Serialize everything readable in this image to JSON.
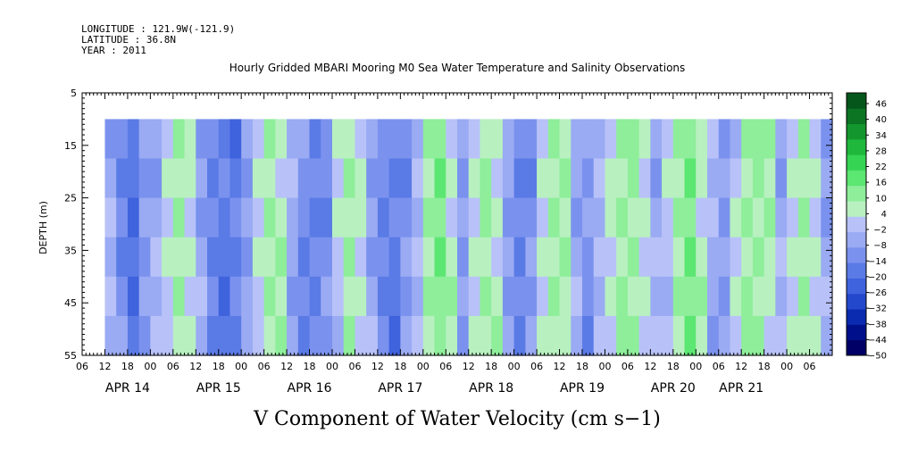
{
  "header": {
    "longitude": "LONGITUDE : 121.9W(-121.9)",
    "latitude": "LATITUDE : 36.8N",
    "year": "YEAR : 2011"
  },
  "chart_data": {
    "type": "heatmap",
    "title": "Hourly Gridded MBARI Mooring M0 Sea Water Temperature and Salinity Observations",
    "xlabel": "V Component of Water Velocity (cm s−1)",
    "ylabel": "DEPTH (m)",
    "y_range": [
      5,
      55
    ],
    "y_inverted": true,
    "y_ticks": [
      5,
      15,
      25,
      35,
      45,
      55
    ],
    "data_depth_range": [
      10,
      55
    ],
    "x_range_hours": [
      0,
      198
    ],
    "data_start_hour": 6,
    "x_hour_labels": [
      "06",
      "12",
      "18",
      "00",
      "06",
      "12",
      "18",
      "00",
      "06",
      "12",
      "18",
      "00",
      "06",
      "12",
      "18",
      "00",
      "06",
      "12",
      "18",
      "00",
      "06",
      "12",
      "18",
      "00",
      "06",
      "12",
      "18",
      "00",
      "06",
      "12",
      "18",
      "00",
      "06"
    ],
    "x_date_labels": [
      {
        "label": "APR 14",
        "hour": 12
      },
      {
        "label": "APR 15",
        "hour": 36
      },
      {
        "label": "APR 16",
        "hour": 60
      },
      {
        "label": "APR 17",
        "hour": 84
      },
      {
        "label": "APR 18",
        "hour": 108
      },
      {
        "label": "APR 19",
        "hour": 132
      },
      {
        "label": "APR 20",
        "hour": 156
      },
      {
        "label": "APR 21",
        "hour": 174
      }
    ],
    "colorbar": {
      "levels": [
        -50,
        -44,
        -38,
        -32,
        -26,
        -20,
        -14,
        -8,
        -2,
        4,
        10,
        16,
        22,
        28,
        34,
        40,
        46
      ],
      "label_values": [
        "46",
        "40",
        "34",
        "28",
        "22",
        "16",
        "10",
        "4",
        "−2",
        "−8",
        "−14",
        "−20",
        "−26",
        "−32",
        "−38",
        "−44",
        "−50"
      ],
      "colors": [
        "#000066",
        "#00108a",
        "#0a2bb0",
        "#2448cc",
        "#3f62dd",
        "#5a7ae6",
        "#7a92ee",
        "#9aaaf3",
        "#b8c2f8",
        "#b8f0c0",
        "#8eee9a",
        "#5ce672",
        "#35d452",
        "#1fb83c",
        "#14962e",
        "#0b7524",
        "#05561a"
      ]
    },
    "bands": [
      {
        "hour": 6,
        "v": -6
      },
      {
        "hour": 9,
        "v": -12
      },
      {
        "hour": 12,
        "v": -18
      },
      {
        "hour": 15,
        "v": -10
      },
      {
        "hour": 18,
        "v": -4
      },
      {
        "hour": 21,
        "v": 3
      },
      {
        "hour": 24,
        "v": 8
      },
      {
        "hour": 27,
        "v": 4
      },
      {
        "hour": 30,
        "v": -6
      },
      {
        "hour": 33,
        "v": -14
      },
      {
        "hour": 36,
        "v": -18
      },
      {
        "hour": 39,
        "v": -16
      },
      {
        "hour": 42,
        "v": -8
      },
      {
        "hour": 45,
        "v": 2
      },
      {
        "hour": 48,
        "v": 10
      },
      {
        "hour": 51,
        "v": 6
      },
      {
        "hour": 54,
        "v": -4
      },
      {
        "hour": 57,
        "v": -12
      },
      {
        "hour": 60,
        "v": -16
      },
      {
        "hour": 63,
        "v": -10
      },
      {
        "hour": 66,
        "v": 2
      },
      {
        "hour": 69,
        "v": 8
      },
      {
        "hour": 72,
        "v": 4
      },
      {
        "hour": 75,
        "v": -6
      },
      {
        "hour": 78,
        "v": -12
      },
      {
        "hour": 81,
        "v": -18
      },
      {
        "hour": 84,
        "v": -10
      },
      {
        "hour": 87,
        "v": 0
      },
      {
        "hour": 90,
        "v": 8
      },
      {
        "hour": 93,
        "v": 12
      },
      {
        "hour": 96,
        "v": 6
      },
      {
        "hour": 99,
        "v": -8
      },
      {
        "hour": 102,
        "v": 2
      },
      {
        "hour": 105,
        "v": 10
      },
      {
        "hour": 108,
        "v": 6
      },
      {
        "hour": 111,
        "v": -6
      },
      {
        "hour": 114,
        "v": -14
      },
      {
        "hour": 117,
        "v": -10
      },
      {
        "hour": 120,
        "v": 4
      },
      {
        "hour": 123,
        "v": 10
      },
      {
        "hour": 126,
        "v": 6
      },
      {
        "hour": 129,
        "v": -4
      },
      {
        "hour": 132,
        "v": -10
      },
      {
        "hour": 135,
        "v": -4
      },
      {
        "hour": 138,
        "v": 4
      },
      {
        "hour": 141,
        "v": 10
      },
      {
        "hour": 144,
        "v": 12
      },
      {
        "hour": 147,
        "v": 4
      },
      {
        "hour": 150,
        "v": -6
      },
      {
        "hour": 153,
        "v": 2
      },
      {
        "hour": 156,
        "v": 10
      },
      {
        "hour": 159,
        "v": 14
      },
      {
        "hour": 162,
        "v": 8
      },
      {
        "hour": 165,
        "v": -4
      },
      {
        "hour": 168,
        "v": -8
      },
      {
        "hour": 171,
        "v": 2
      },
      {
        "hour": 174,
        "v": 10
      },
      {
        "hour": 177,
        "v": 12
      },
      {
        "hour": 180,
        "v": 6
      },
      {
        "hour": 183,
        "v": -4
      },
      {
        "hour": 186,
        "v": 4
      },
      {
        "hour": 189,
        "v": 8
      },
      {
        "hour": 192,
        "v": 2
      },
      {
        "hour": 195,
        "v": -6
      }
    ]
  }
}
